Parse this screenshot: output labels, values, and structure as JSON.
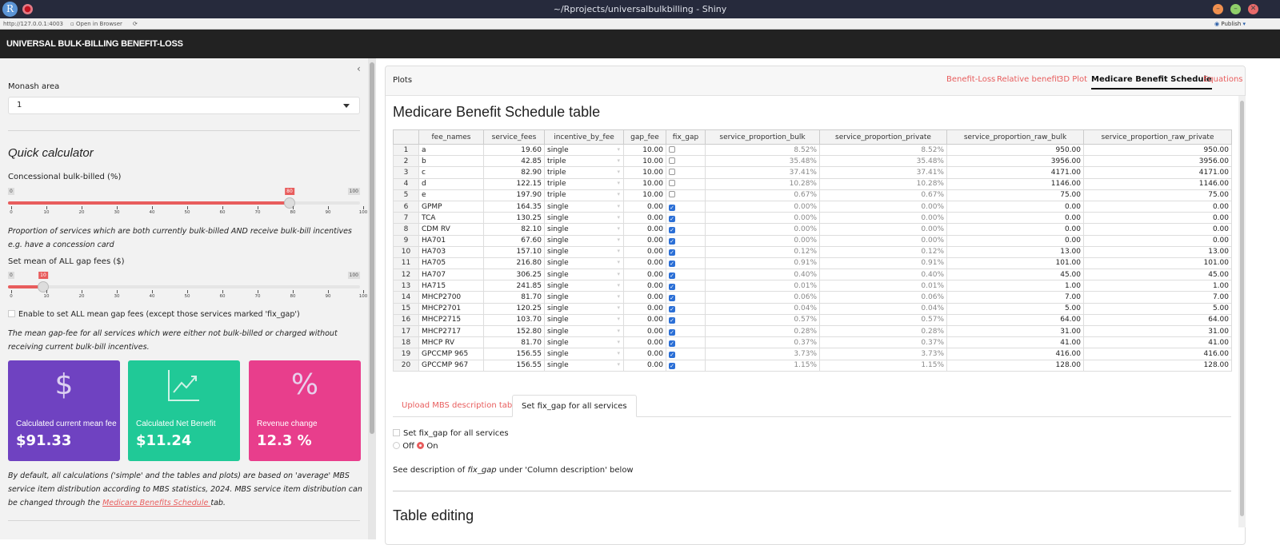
{
  "window": {
    "title": "~/Rprojects/universalbulkbilling - Shiny",
    "url": "http://127.0.0.1:4003",
    "open_browser": "Open in Browser",
    "publish": "Publish"
  },
  "app": {
    "title": "UNIVERSAL BULK-BILLING BENEFIT-LOSS"
  },
  "sidebar": {
    "area_label": "Monash area",
    "area_value": "1",
    "quick_title": "Quick calculator",
    "conc": {
      "label": "Concessional bulk-billed (%)",
      "min": "0",
      "max": "100",
      "value": 80,
      "value_label": "80"
    },
    "conc_help": "Proportion of services which are both currently bulk-billed AND receive bulk-bill incentives e.g. have a concession card",
    "gap": {
      "label": "Set mean of ALL gap fees ($)",
      "min": "0",
      "max": "100",
      "value": 10,
      "value_label": "10"
    },
    "ticks": [
      "0",
      "10",
      "20",
      "30",
      "40",
      "50",
      "60",
      "70",
      "80",
      "90",
      "100"
    ],
    "enable_label": "Enable to set ALL mean gap fees (except those services marked 'fix_gap')",
    "gap_help": "The mean gap-fee for all services which were either not bulk-billed or charged without receiving current bulk-bill incentives.",
    "boxes": [
      {
        "title": "Calculated current mean fee",
        "value": "$91.33",
        "icon": "dollar-icon",
        "color": "#6f42c1"
      },
      {
        "title": "Calculated Net Benefit",
        "value": "$11.24",
        "icon": "chart-line-icon",
        "color": "#20c997"
      },
      {
        "title": "Revenue change",
        "value": "12.3 %",
        "icon": "percent-icon",
        "color": "#e83e8c"
      }
    ],
    "footer_text": "By default, all calculations ('simple' and the tables and plots) are based on 'average' MBS service item distribution according to MBS statistics, 2024. MBS service item distribution can be changed through the ",
    "footer_link": "Medicare Benefits Schedule ",
    "footer_end": "tab."
  },
  "main": {
    "card_title": "Plots",
    "tabs": [
      {
        "label": "Benefit-Loss"
      },
      {
        "label": "Relative benefit"
      },
      {
        "label": "3D Plot"
      },
      {
        "label": "Medicare Benefit Schedule",
        "active": true
      },
      {
        "label": "Equations"
      }
    ],
    "heading": "Medicare Benefit Schedule table",
    "table": {
      "columns": [
        "",
        "fee_names",
        "service_fees",
        "incentive_by_fee",
        "gap_fee",
        "fix_gap",
        "service_proportion_bulk",
        "service_proportion_private",
        "service_proportion_raw_bulk",
        "service_proportion_raw_private"
      ],
      "rows": [
        [
          "1",
          "a",
          "19.60",
          "single",
          "10.00",
          false,
          "8.52%",
          "8.52%",
          "950.00",
          "950.00"
        ],
        [
          "2",
          "b",
          "42.85",
          "triple",
          "10.00",
          false,
          "35.48%",
          "35.48%",
          "3956.00",
          "3956.00"
        ],
        [
          "3",
          "c",
          "82.90",
          "triple",
          "10.00",
          false,
          "37.41%",
          "37.41%",
          "4171.00",
          "4171.00"
        ],
        [
          "4",
          "d",
          "122.15",
          "triple",
          "10.00",
          false,
          "10.28%",
          "10.28%",
          "1146.00",
          "1146.00"
        ],
        [
          "5",
          "e",
          "197.90",
          "triple",
          "10.00",
          false,
          "0.67%",
          "0.67%",
          "75.00",
          "75.00"
        ],
        [
          "6",
          "GPMP",
          "164.35",
          "single",
          "0.00",
          true,
          "0.00%",
          "0.00%",
          "0.00",
          "0.00"
        ],
        [
          "7",
          "TCA",
          "130.25",
          "single",
          "0.00",
          true,
          "0.00%",
          "0.00%",
          "0.00",
          "0.00"
        ],
        [
          "8",
          "CDM RV",
          "82.10",
          "single",
          "0.00",
          true,
          "0.00%",
          "0.00%",
          "0.00",
          "0.00"
        ],
        [
          "9",
          "HA701",
          "67.60",
          "single",
          "0.00",
          true,
          "0.00%",
          "0.00%",
          "0.00",
          "0.00"
        ],
        [
          "10",
          "HA703",
          "157.10",
          "single",
          "0.00",
          true,
          "0.12%",
          "0.12%",
          "13.00",
          "13.00"
        ],
        [
          "11",
          "HA705",
          "216.80",
          "single",
          "0.00",
          true,
          "0.91%",
          "0.91%",
          "101.00",
          "101.00"
        ],
        [
          "12",
          "HA707",
          "306.25",
          "single",
          "0.00",
          true,
          "0.40%",
          "0.40%",
          "45.00",
          "45.00"
        ],
        [
          "13",
          "HA715",
          "241.85",
          "single",
          "0.00",
          true,
          "0.01%",
          "0.01%",
          "1.00",
          "1.00"
        ],
        [
          "14",
          "MHCP2700",
          "81.70",
          "single",
          "0.00",
          true,
          "0.06%",
          "0.06%",
          "7.00",
          "7.00"
        ],
        [
          "15",
          "MHCP2701",
          "120.25",
          "single",
          "0.00",
          true,
          "0.04%",
          "0.04%",
          "5.00",
          "5.00"
        ],
        [
          "16",
          "MHCP2715",
          "103.70",
          "single",
          "0.00",
          true,
          "0.57%",
          "0.57%",
          "64.00",
          "64.00"
        ],
        [
          "17",
          "MHCP2717",
          "152.80",
          "single",
          "0.00",
          true,
          "0.28%",
          "0.28%",
          "31.00",
          "31.00"
        ],
        [
          "18",
          "MHCP RV",
          "81.70",
          "single",
          "0.00",
          true,
          "0.37%",
          "0.37%",
          "41.00",
          "41.00"
        ],
        [
          "19",
          "GPCCMP 965",
          "156.55",
          "single",
          "0.00",
          true,
          "3.73%",
          "3.73%",
          "416.00",
          "416.00"
        ],
        [
          "20",
          "GPCCMP 967",
          "156.55",
          "single",
          "0.00",
          true,
          "1.15%",
          "1.15%",
          "128.00",
          "128.00"
        ]
      ]
    },
    "subtabs": [
      {
        "label": "Upload MBS description table"
      },
      {
        "label": "Set fix_gap for all services",
        "active": true
      }
    ],
    "fixgap_check": "Set fix_gap for all services",
    "radio_off": "Off",
    "radio_on": "On",
    "radio_selected": "On",
    "desc_pre": "See description of ",
    "desc_em": "fix_gap",
    "desc_post": " under 'Column description' below",
    "table_editing": "Table editing"
  },
  "colors": {
    "accent": "#e85d5d",
    "navbar": "#222222"
  }
}
